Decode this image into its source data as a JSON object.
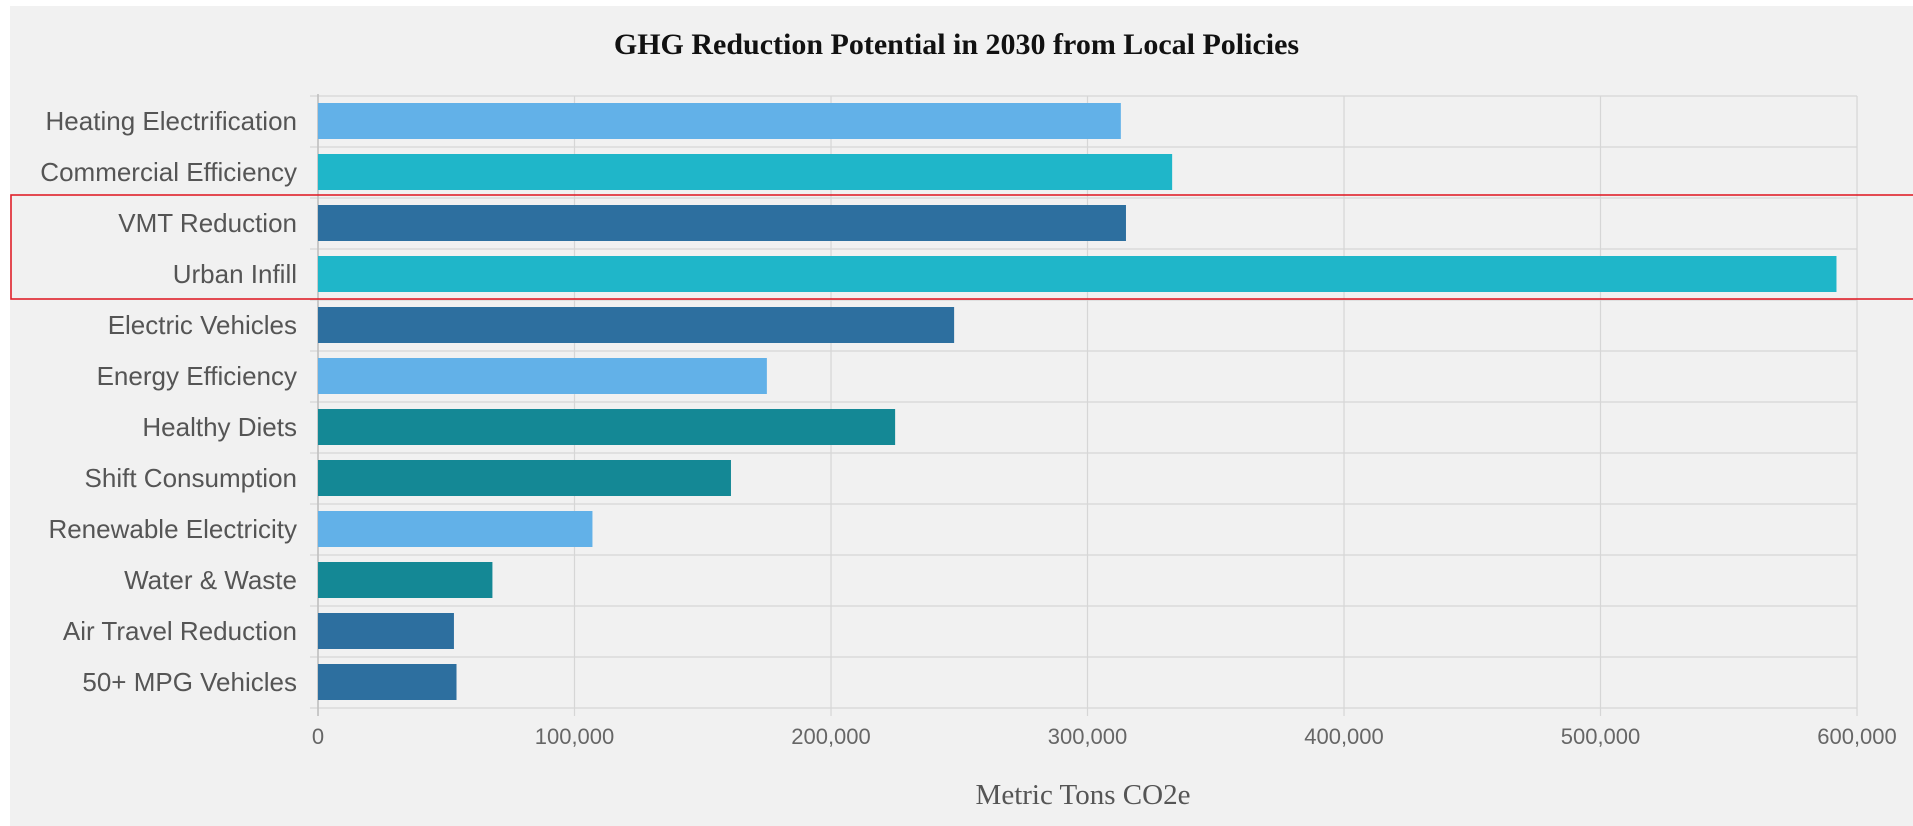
{
  "chart_data": {
    "type": "bar",
    "orientation": "horizontal",
    "title": "GHG Reduction Potential in 2030 from Local Policies",
    "xlabel": "Metric Tons CO2e",
    "ylabel": "",
    "xlim": [
      0,
      600000
    ],
    "x_ticks": [
      0,
      100000,
      200000,
      300000,
      400000,
      500000,
      600000
    ],
    "x_tick_labels": [
      "0",
      "100,000",
      "200,000",
      "300,000",
      "400,000",
      "500,000",
      "600,000"
    ],
    "grid": true,
    "categories": [
      "Heating Electrification",
      "Commercial Efficiency",
      "VMT Reduction",
      "Urban Infill",
      "Electric Vehicles",
      "Energy Efficiency",
      "Healthy Diets",
      "Shift Consumption",
      "Renewable Electricity",
      "Water & Waste",
      "Air Travel Reduction",
      "50+ MPG Vehicles"
    ],
    "values": [
      313000,
      333000,
      315000,
      592000,
      248000,
      175000,
      225000,
      161000,
      107000,
      68000,
      53000,
      54000
    ],
    "bar_colors": [
      "#62b1e8",
      "#1fb6c9",
      "#2d6f9f",
      "#1fb6c9",
      "#2d6f9f",
      "#62b1e8",
      "#148895",
      "#148895",
      "#62b1e8",
      "#148895",
      "#2d6f9f",
      "#2d6f9f"
    ],
    "highlight": {
      "categories": [
        "VMT Reduction",
        "Urban Infill"
      ],
      "color": "#e0202a"
    }
  }
}
